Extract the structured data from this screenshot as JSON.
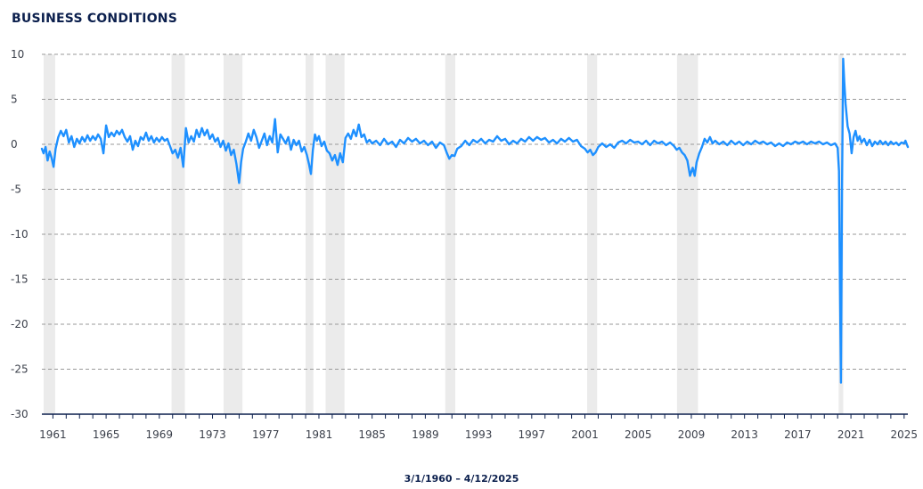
{
  "chart_data": {
    "type": "line",
    "title": "BUSINESS CONDITIONS",
    "date_range_label": "3/1/1960 – 4/12/2025",
    "x_start_year": 1960.17,
    "x_end_year": 2025.28,
    "ylim": [
      -30,
      10
    ],
    "y_ticks": [
      10,
      5,
      0,
      -5,
      -10,
      -15,
      -20,
      -25,
      -30
    ],
    "x_tick_labels": [
      "1961",
      "1965",
      "1969",
      "1973",
      "1977",
      "1981",
      "1985",
      "1989",
      "1993",
      "1997",
      "2001",
      "2005",
      "2009",
      "2013",
      "2017",
      "2021",
      "2025"
    ],
    "grid": true,
    "grid_style": "dashed-horizontal",
    "line_color": "#1e90ff",
    "recession_color": "#ebebeb",
    "recessions": [
      [
        1960.3,
        1961.17
      ],
      [
        1969.92,
        1970.92
      ],
      [
        1973.83,
        1975.25
      ],
      [
        1980.0,
        1980.58
      ],
      [
        1981.5,
        1982.92
      ],
      [
        1990.5,
        1991.25
      ],
      [
        2001.17,
        2001.92
      ],
      [
        2007.92,
        2009.5
      ],
      [
        2020.08,
        2020.42
      ]
    ],
    "series": [
      {
        "points": [
          [
            1960.17,
            -0.5
          ],
          [
            1960.3,
            -1.0
          ],
          [
            1960.45,
            -0.3
          ],
          [
            1960.6,
            -1.8
          ],
          [
            1960.75,
            -0.8
          ],
          [
            1960.9,
            -1.5
          ],
          [
            1961.05,
            -2.5
          ],
          [
            1961.2,
            -0.5
          ],
          [
            1961.4,
            0.8
          ],
          [
            1961.6,
            1.5
          ],
          [
            1961.8,
            0.9
          ],
          [
            1962.0,
            1.6
          ],
          [
            1962.2,
            0.2
          ],
          [
            1962.4,
            0.9
          ],
          [
            1962.6,
            -0.3
          ],
          [
            1962.8,
            0.6
          ],
          [
            1963.0,
            0.1
          ],
          [
            1963.2,
            0.8
          ],
          [
            1963.4,
            0.3
          ],
          [
            1963.6,
            1.0
          ],
          [
            1963.8,
            0.4
          ],
          [
            1964.0,
            0.9
          ],
          [
            1964.2,
            0.5
          ],
          [
            1964.4,
            1.1
          ],
          [
            1964.6,
            0.6
          ],
          [
            1964.8,
            -1.0
          ],
          [
            1965.0,
            2.1
          ],
          [
            1965.2,
            0.8
          ],
          [
            1965.4,
            1.3
          ],
          [
            1965.6,
            0.9
          ],
          [
            1965.8,
            1.5
          ],
          [
            1966.0,
            1.1
          ],
          [
            1966.2,
            1.6
          ],
          [
            1966.4,
            0.8
          ],
          [
            1966.6,
            0.3
          ],
          [
            1966.8,
            0.9
          ],
          [
            1967.0,
            -0.6
          ],
          [
            1967.2,
            0.4
          ],
          [
            1967.4,
            -0.2
          ],
          [
            1967.6,
            0.8
          ],
          [
            1967.8,
            0.5
          ],
          [
            1968.0,
            1.3
          ],
          [
            1968.2,
            0.4
          ],
          [
            1968.4,
            0.9
          ],
          [
            1968.6,
            0.2
          ],
          [
            1968.8,
            0.7
          ],
          [
            1969.0,
            0.3
          ],
          [
            1969.2,
            0.8
          ],
          [
            1969.4,
            0.4
          ],
          [
            1969.6,
            0.6
          ],
          [
            1969.8,
            -0.2
          ],
          [
            1970.0,
            -1.0
          ],
          [
            1970.2,
            -0.6
          ],
          [
            1970.4,
            -1.5
          ],
          [
            1970.6,
            -0.4
          ],
          [
            1970.8,
            -2.5
          ],
          [
            1971.0,
            1.8
          ],
          [
            1971.2,
            0.2
          ],
          [
            1971.4,
            0.9
          ],
          [
            1971.6,
            0.3
          ],
          [
            1971.8,
            1.6
          ],
          [
            1972.0,
            0.8
          ],
          [
            1972.2,
            1.8
          ],
          [
            1972.4,
            1.0
          ],
          [
            1972.6,
            1.6
          ],
          [
            1972.8,
            0.6
          ],
          [
            1973.0,
            1.1
          ],
          [
            1973.2,
            0.3
          ],
          [
            1973.4,
            0.7
          ],
          [
            1973.6,
            -0.3
          ],
          [
            1973.8,
            0.4
          ],
          [
            1974.0,
            -0.7
          ],
          [
            1974.2,
            0.1
          ],
          [
            1974.4,
            -1.2
          ],
          [
            1974.6,
            -0.6
          ],
          [
            1974.8,
            -2.2
          ],
          [
            1975.0,
            -4.3
          ],
          [
            1975.15,
            -2.0
          ],
          [
            1975.3,
            -0.5
          ],
          [
            1975.5,
            0.3
          ],
          [
            1975.7,
            1.2
          ],
          [
            1975.9,
            0.4
          ],
          [
            1976.1,
            1.6
          ],
          [
            1976.3,
            0.8
          ],
          [
            1976.5,
            -0.4
          ],
          [
            1976.7,
            0.4
          ],
          [
            1976.9,
            1.2
          ],
          [
            1977.1,
            -0.1
          ],
          [
            1977.3,
            0.9
          ],
          [
            1977.5,
            0.2
          ],
          [
            1977.7,
            2.8
          ],
          [
            1977.9,
            -0.9
          ],
          [
            1978.1,
            1.1
          ],
          [
            1978.3,
            0.6
          ],
          [
            1978.5,
            0.1
          ],
          [
            1978.7,
            0.8
          ],
          [
            1978.9,
            -0.6
          ],
          [
            1979.1,
            0.5
          ],
          [
            1979.3,
            -0.1
          ],
          [
            1979.5,
            0.4
          ],
          [
            1979.7,
            -0.8
          ],
          [
            1979.9,
            -0.3
          ],
          [
            1980.1,
            -1.2
          ],
          [
            1980.25,
            -2.2
          ],
          [
            1980.4,
            -3.3
          ],
          [
            1980.55,
            -0.6
          ],
          [
            1980.7,
            1.1
          ],
          [
            1980.85,
            0.4
          ],
          [
            1981.0,
            0.9
          ],
          [
            1981.2,
            -0.2
          ],
          [
            1981.4,
            0.3
          ],
          [
            1981.6,
            -0.7
          ],
          [
            1981.8,
            -1.0
          ],
          [
            1982.0,
            -1.8
          ],
          [
            1982.2,
            -1.2
          ],
          [
            1982.4,
            -2.3
          ],
          [
            1982.6,
            -1.0
          ],
          [
            1982.8,
            -2.0
          ],
          [
            1983.0,
            0.7
          ],
          [
            1983.2,
            1.2
          ],
          [
            1983.4,
            0.6
          ],
          [
            1983.6,
            1.6
          ],
          [
            1983.8,
            0.9
          ],
          [
            1984.0,
            2.2
          ],
          [
            1984.2,
            0.8
          ],
          [
            1984.4,
            1.1
          ],
          [
            1984.6,
            0.2
          ],
          [
            1984.8,
            0.5
          ],
          [
            1985.0,
            0.1
          ],
          [
            1985.3,
            0.4
          ],
          [
            1985.6,
            -0.1
          ],
          [
            1985.9,
            0.6
          ],
          [
            1986.2,
            0.0
          ],
          [
            1986.5,
            0.3
          ],
          [
            1986.8,
            -0.3
          ],
          [
            1987.1,
            0.5
          ],
          [
            1987.4,
            0.1
          ],
          [
            1987.7,
            0.7
          ],
          [
            1988.0,
            0.3
          ],
          [
            1988.3,
            0.6
          ],
          [
            1988.6,
            0.1
          ],
          [
            1988.9,
            0.4
          ],
          [
            1989.2,
            -0.1
          ],
          [
            1989.5,
            0.3
          ],
          [
            1989.8,
            -0.4
          ],
          [
            1990.1,
            0.2
          ],
          [
            1990.4,
            -0.1
          ],
          [
            1990.6,
            -0.9
          ],
          [
            1990.8,
            -1.6
          ],
          [
            1991.0,
            -1.2
          ],
          [
            1991.2,
            -1.3
          ],
          [
            1991.4,
            -0.5
          ],
          [
            1991.7,
            -0.2
          ],
          [
            1992.0,
            0.4
          ],
          [
            1992.3,
            -0.1
          ],
          [
            1992.6,
            0.5
          ],
          [
            1992.9,
            0.2
          ],
          [
            1993.2,
            0.6
          ],
          [
            1993.5,
            0.1
          ],
          [
            1993.8,
            0.5
          ],
          [
            1994.1,
            0.3
          ],
          [
            1994.4,
            0.9
          ],
          [
            1994.7,
            0.4
          ],
          [
            1995.0,
            0.6
          ],
          [
            1995.3,
            0.0
          ],
          [
            1995.6,
            0.4
          ],
          [
            1995.9,
            0.1
          ],
          [
            1996.2,
            0.6
          ],
          [
            1996.5,
            0.3
          ],
          [
            1996.8,
            0.8
          ],
          [
            1997.1,
            0.4
          ],
          [
            1997.4,
            0.8
          ],
          [
            1997.7,
            0.5
          ],
          [
            1998.0,
            0.7
          ],
          [
            1998.3,
            0.2
          ],
          [
            1998.6,
            0.5
          ],
          [
            1998.9,
            0.1
          ],
          [
            1999.2,
            0.6
          ],
          [
            1999.5,
            0.3
          ],
          [
            1999.8,
            0.7
          ],
          [
            2000.1,
            0.3
          ],
          [
            2000.4,
            0.5
          ],
          [
            2000.7,
            -0.2
          ],
          [
            2001.0,
            -0.5
          ],
          [
            2001.2,
            -0.9
          ],
          [
            2001.4,
            -0.6
          ],
          [
            2001.6,
            -1.2
          ],
          [
            2001.8,
            -0.9
          ],
          [
            2002.0,
            -0.3
          ],
          [
            2002.3,
            0.1
          ],
          [
            2002.6,
            -0.3
          ],
          [
            2002.9,
            0.0
          ],
          [
            2003.2,
            -0.4
          ],
          [
            2003.5,
            0.2
          ],
          [
            2003.8,
            0.4
          ],
          [
            2004.1,
            0.1
          ],
          [
            2004.4,
            0.5
          ],
          [
            2004.7,
            0.2
          ],
          [
            2005.0,
            0.3
          ],
          [
            2005.3,
            0.0
          ],
          [
            2005.6,
            0.4
          ],
          [
            2005.9,
            -0.1
          ],
          [
            2006.2,
            0.4
          ],
          [
            2006.5,
            0.1
          ],
          [
            2006.8,
            0.3
          ],
          [
            2007.1,
            -0.1
          ],
          [
            2007.4,
            0.2
          ],
          [
            2007.7,
            -0.2
          ],
          [
            2007.9,
            -0.6
          ],
          [
            2008.1,
            -0.4
          ],
          [
            2008.3,
            -0.9
          ],
          [
            2008.5,
            -1.2
          ],
          [
            2008.7,
            -1.8
          ],
          [
            2008.9,
            -3.5
          ],
          [
            2009.1,
            -2.6
          ],
          [
            2009.25,
            -3.5
          ],
          [
            2009.4,
            -2.0
          ],
          [
            2009.6,
            -1.0
          ],
          [
            2009.8,
            -0.3
          ],
          [
            2010.0,
            0.6
          ],
          [
            2010.2,
            0.2
          ],
          [
            2010.4,
            0.8
          ],
          [
            2010.6,
            0.1
          ],
          [
            2010.8,
            0.4
          ],
          [
            2011.1,
            0.0
          ],
          [
            2011.4,
            0.3
          ],
          [
            2011.7,
            -0.1
          ],
          [
            2012.0,
            0.4
          ],
          [
            2012.3,
            0.0
          ],
          [
            2012.6,
            0.3
          ],
          [
            2012.9,
            -0.1
          ],
          [
            2013.2,
            0.3
          ],
          [
            2013.5,
            0.0
          ],
          [
            2013.8,
            0.4
          ],
          [
            2014.1,
            0.1
          ],
          [
            2014.4,
            0.3
          ],
          [
            2014.7,
            0.0
          ],
          [
            2015.0,
            0.2
          ],
          [
            2015.3,
            -0.2
          ],
          [
            2015.6,
            0.1
          ],
          [
            2015.9,
            -0.2
          ],
          [
            2016.2,
            0.2
          ],
          [
            2016.5,
            0.0
          ],
          [
            2016.8,
            0.3
          ],
          [
            2017.1,
            0.1
          ],
          [
            2017.4,
            0.3
          ],
          [
            2017.7,
            0.0
          ],
          [
            2018.0,
            0.3
          ],
          [
            2018.3,
            0.1
          ],
          [
            2018.6,
            0.3
          ],
          [
            2018.9,
            0.0
          ],
          [
            2019.2,
            0.2
          ],
          [
            2019.5,
            -0.1
          ],
          [
            2019.8,
            0.1
          ],
          [
            2020.0,
            -0.4
          ],
          [
            2020.1,
            -3.0
          ],
          [
            2020.17,
            -15.0
          ],
          [
            2020.25,
            -26.5
          ],
          [
            2020.33,
            -5.0
          ],
          [
            2020.42,
            9.5
          ],
          [
            2020.5,
            7.0
          ],
          [
            2020.6,
            4.5
          ],
          [
            2020.75,
            2.0
          ],
          [
            2020.9,
            1.2
          ],
          [
            2021.05,
            -1.0
          ],
          [
            2021.2,
            0.8
          ],
          [
            2021.35,
            1.5
          ],
          [
            2021.5,
            0.4
          ],
          [
            2021.65,
            0.9
          ],
          [
            2021.8,
            0.2
          ],
          [
            2022.0,
            0.6
          ],
          [
            2022.2,
            -0.1
          ],
          [
            2022.4,
            0.5
          ],
          [
            2022.6,
            -0.2
          ],
          [
            2022.8,
            0.3
          ],
          [
            2023.0,
            0.0
          ],
          [
            2023.2,
            0.4
          ],
          [
            2023.4,
            0.0
          ],
          [
            2023.6,
            0.3
          ],
          [
            2023.8,
            -0.1
          ],
          [
            2024.0,
            0.3
          ],
          [
            2024.2,
            0.0
          ],
          [
            2024.4,
            0.2
          ],
          [
            2024.6,
            -0.1
          ],
          [
            2024.8,
            0.2
          ],
          [
            2025.0,
            0.1
          ],
          [
            2025.1,
            0.4
          ],
          [
            2025.2,
            0.0
          ],
          [
            2025.28,
            -0.3
          ]
        ]
      }
    ]
  }
}
